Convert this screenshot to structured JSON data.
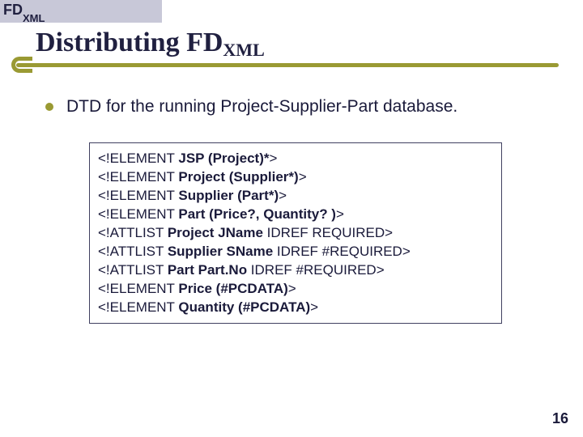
{
  "header": {
    "main": "FD",
    "sub": "XML"
  },
  "title": {
    "main": "Distributing FD",
    "sub": "XML"
  },
  "bullet": {
    "text": "DTD for the running Project-Supplier-Part database."
  },
  "code": {
    "lines": [
      {
        "prefix": "<!ELEMENT ",
        "bold": "JSP (Project)*",
        "suffix": ">"
      },
      {
        "prefix": "<!ELEMENT ",
        "bold": "Project (Supplier*)",
        "suffix": ">"
      },
      {
        "prefix": "<!ELEMENT ",
        "bold": "Supplier (Part*)",
        "suffix": ">"
      },
      {
        "prefix": "<!ELEMENT ",
        "bold": "Part (Price?, Quantity? )",
        "suffix": ">"
      },
      {
        "prefix": "<!ATTLIST ",
        "bold": "Project JName",
        "suffix": " IDREF REQUIRED>"
      },
      {
        "prefix": "<!ATTLIST ",
        "bold": "Supplier SName",
        "suffix": " IDREF #REQUIRED>"
      },
      {
        "prefix": "<!ATTLIST ",
        "bold": "Part Part.No",
        "suffix": " IDREF #REQUIRED>"
      },
      {
        "prefix": "<!ELEMENT ",
        "bold": "Price (#PCDATA)",
        "suffix": ">"
      },
      {
        "prefix": "<!ELEMENT ",
        "bold": "Quantity (#PCDATA)",
        "suffix": ">"
      }
    ]
  },
  "pageNumber": "16",
  "colors": {
    "headerBg": "#c8c8d8",
    "darkText": "#1a1a3a",
    "accent": "#9a9a33"
  }
}
